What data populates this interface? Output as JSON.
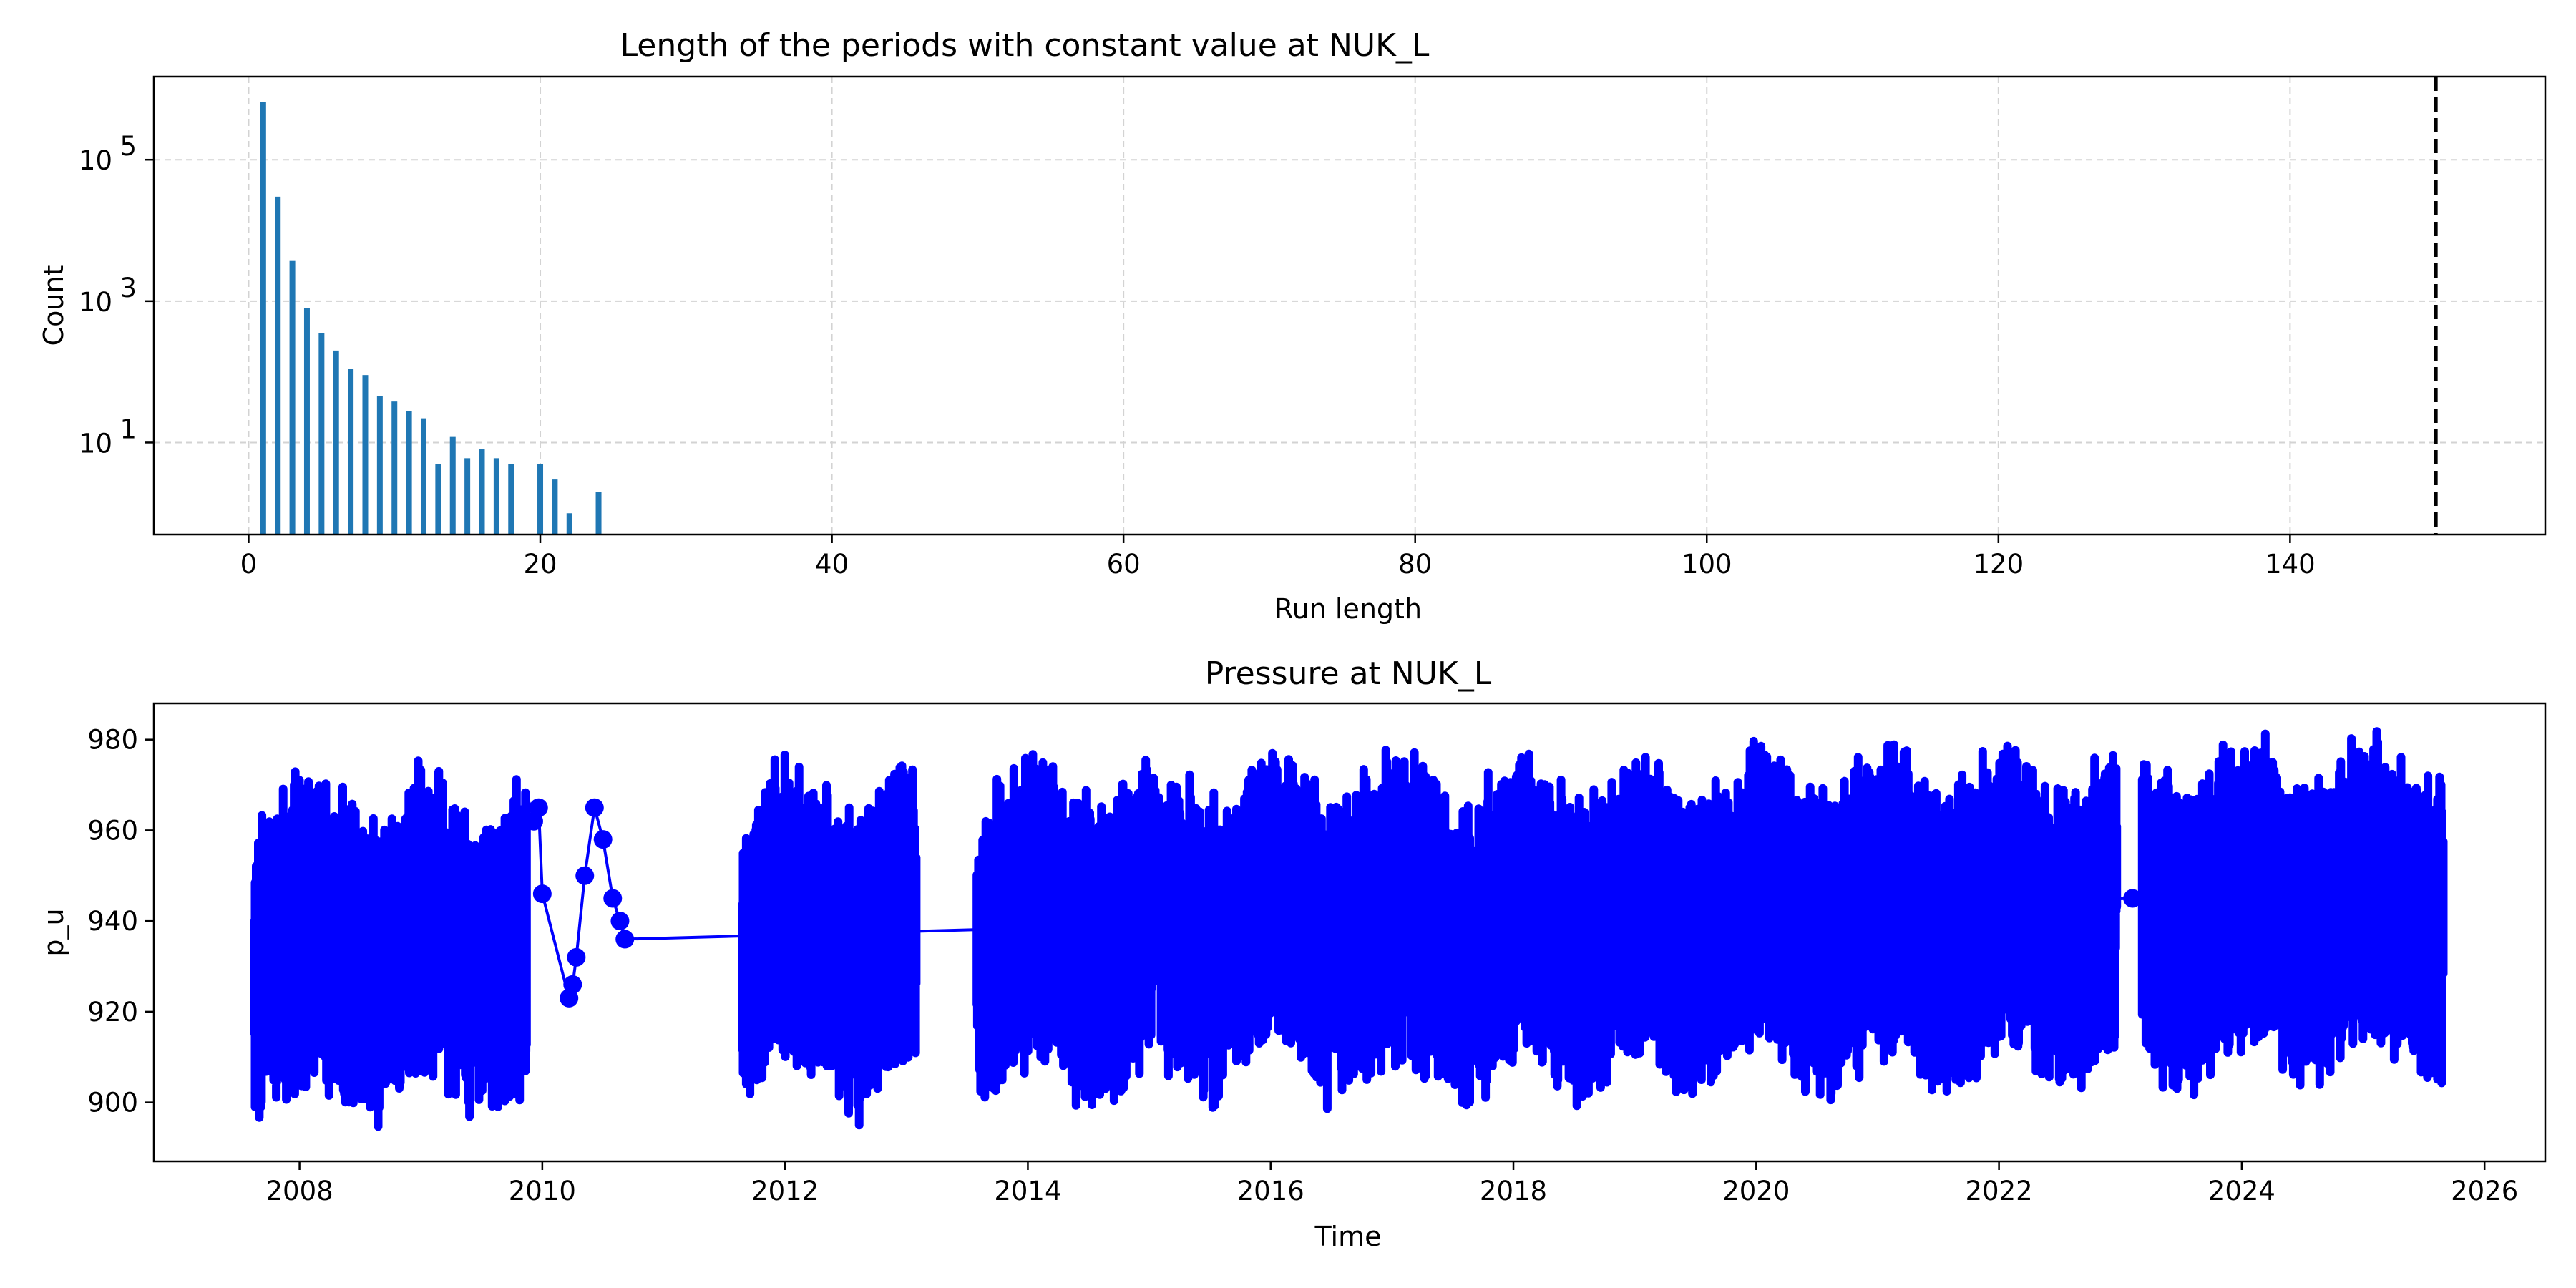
{
  "chart_data": [
    {
      "type": "bar",
      "title": "Length of the periods with constant value at NUK_L",
      "xlabel": "Run length",
      "ylabel": "Count",
      "yscale": "log",
      "grid": true,
      "xlim": [
        -6.5,
        157.5
      ],
      "ylim": [
        0.5,
        1500000
      ],
      "x_ticks": [
        0,
        20,
        40,
        60,
        80,
        100,
        120,
        140
      ],
      "y_ticks": [
        {
          "value": 10,
          "base": "10",
          "exp": "1"
        },
        {
          "value": 1000,
          "base": "10",
          "exp": "3"
        },
        {
          "value": 100000,
          "base": "10",
          "exp": "5"
        }
      ],
      "bar_color": "#1f77b4",
      "x": [
        1,
        2,
        3,
        4,
        5,
        6,
        7,
        8,
        9,
        10,
        11,
        12,
        13,
        14,
        15,
        16,
        17,
        18,
        19,
        20,
        21,
        22,
        23,
        24
      ],
      "values": [
        650000,
        30000,
        3700,
        800,
        350,
        200,
        110,
        90,
        45,
        38,
        28,
        22,
        5,
        12,
        6,
        8,
        6,
        5,
        0,
        5,
        3,
        1,
        0,
        2
      ],
      "threshold_line": {
        "x": 150,
        "style": "dashed",
        "color": "#000000"
      }
    },
    {
      "type": "scatter",
      "title": "Pressure at NUK_L",
      "xlabel": "Time",
      "ylabel": "p_u",
      "grid": false,
      "xlim": [
        2006.8,
        2026.5
      ],
      "ylim": [
        887,
        988
      ],
      "x_ticks": [
        "2008",
        "2010",
        "2012",
        "2014",
        "2016",
        "2018",
        "2020",
        "2022",
        "2024",
        "2026"
      ],
      "y_ticks": [
        900,
        920,
        940,
        960,
        980
      ],
      "marker_color": "#0000ff",
      "segments": [
        {
          "start": 2007.63,
          "end": 2009.87,
          "seed": 11
        },
        {
          "start": 2011.65,
          "end": 2013.08,
          "seed": 23
        },
        {
          "start": 2013.58,
          "end": 2022.97,
          "seed": 37
        },
        {
          "start": 2023.18,
          "end": 2025.66,
          "seed": 51
        }
      ],
      "isolated_points": [
        {
          "x": 2009.93,
          "y": 962
        },
        {
          "x": 2009.97,
          "y": 965
        },
        {
          "x": 2010.0,
          "y": 946
        },
        {
          "x": 2010.22,
          "y": 923
        },
        {
          "x": 2010.25,
          "y": 926
        },
        {
          "x": 2010.28,
          "y": 932
        },
        {
          "x": 2010.35,
          "y": 950
        },
        {
          "x": 2010.43,
          "y": 965
        },
        {
          "x": 2010.5,
          "y": 958
        },
        {
          "x": 2010.58,
          "y": 945
        },
        {
          "x": 2010.64,
          "y": 940
        },
        {
          "x": 2010.68,
          "y": 936
        },
        {
          "x": 2023.1,
          "y": 945
        }
      ]
    }
  ]
}
